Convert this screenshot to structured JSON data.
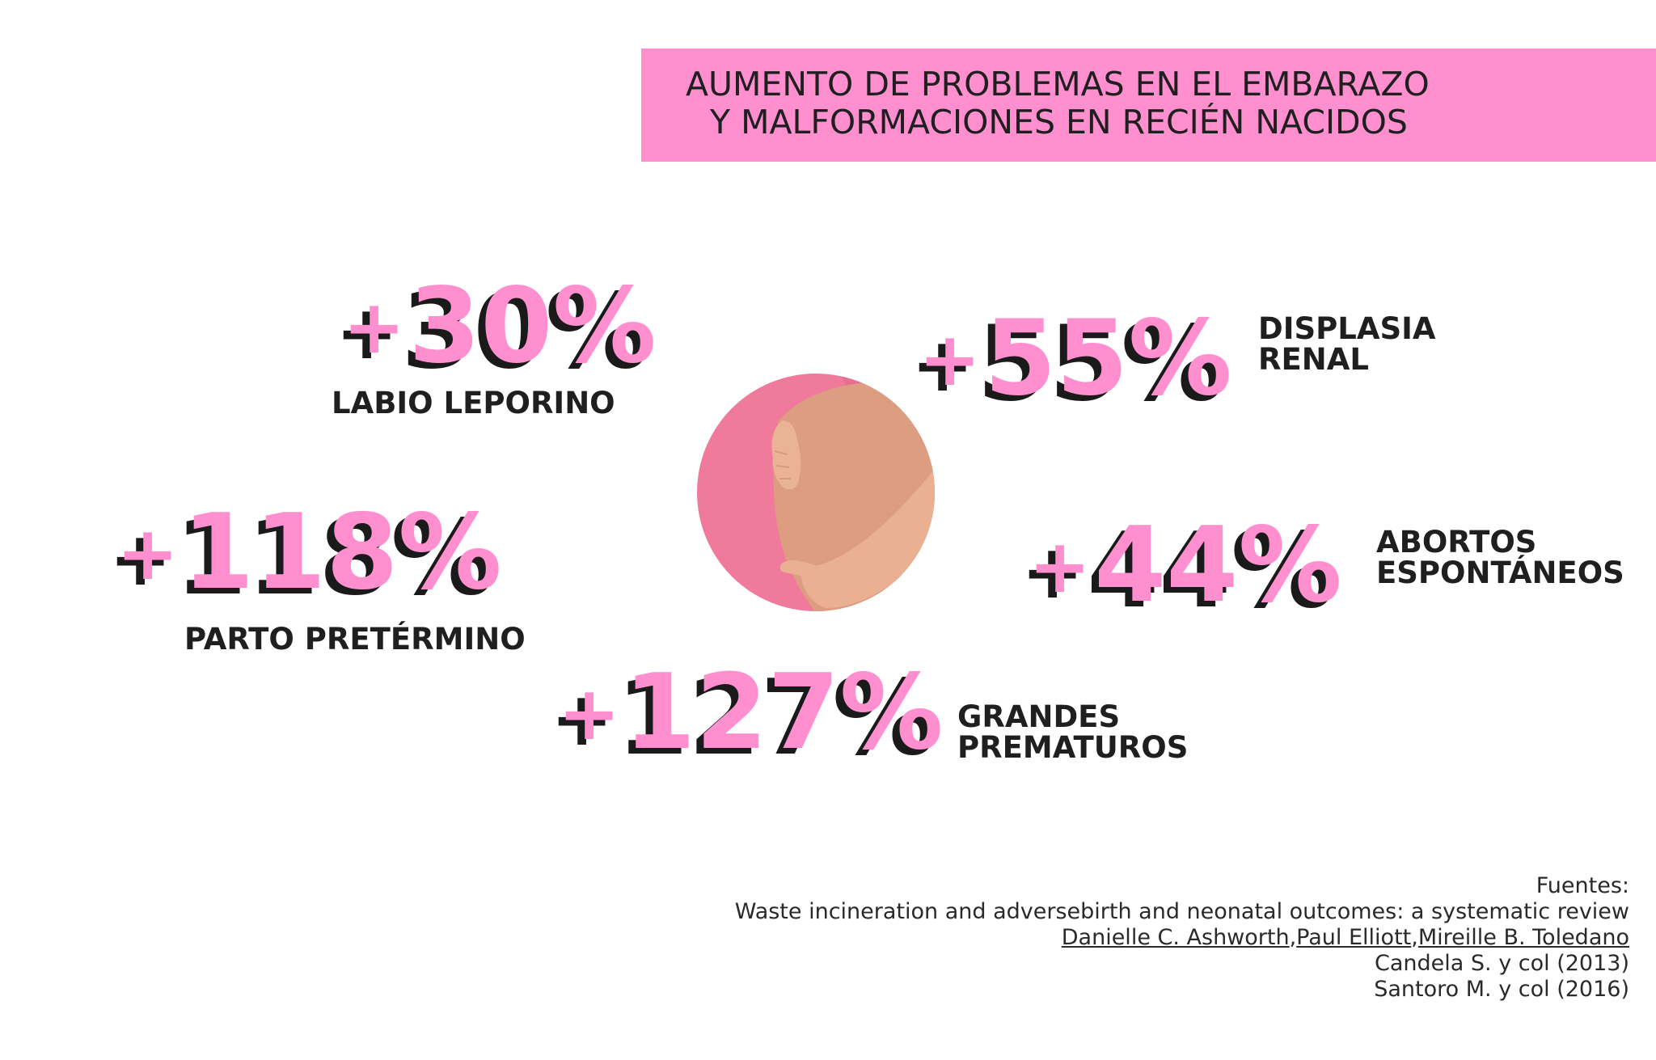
{
  "title": {
    "line1": "AUMENTO DE PROBLEMAS EN EL EMBARAZO",
    "line2": "Y MALFORMACIONES EN RECIÉN NACIDOS"
  },
  "stats": {
    "labio": {
      "value": "+30%",
      "plus": "+",
      "number": "30%",
      "label": "LABIO LEPORINO"
    },
    "displasia": {
      "value": "+55%",
      "plus": "+",
      "number": "55%",
      "label_line1": "DISPLASIA",
      "label_line2": "RENAL"
    },
    "parto": {
      "value": "+118%",
      "plus": "+",
      "number": "118%",
      "label": "PARTO PRETÉRMINO"
    },
    "abortos": {
      "value": "+44%",
      "plus": "+",
      "number": "44%",
      "label_line1": "ABORTOS",
      "label_line2": "ESPONTÁNEOS"
    },
    "grandes": {
      "value": "+127%",
      "plus": "+",
      "number": "127%",
      "label_line1": "GRANDES",
      "label_line2": "PREMATUROS"
    }
  },
  "sources": {
    "heading": "Fuentes:",
    "line1": "Waste incineration and adversebirth and neonatal outcomes: a systematic review",
    "author1": "Danielle C. Ashworth",
    "sep1": ",",
    "author2": "Paul Elliott",
    "sep2": ",",
    "author3": "Mireille B. Toledano",
    "line3": "Candela S. y col (2013)",
    "line4": "Santoro M. y col (2016)"
  },
  "colors": {
    "accent_pink": "#ff8fcf",
    "shadow": "#1a1a1a",
    "text": "#1f1f1f",
    "circle_pink": "#f07a9c",
    "skin": "#dc9d80",
    "skin_light": "#e9b192"
  },
  "illustration": {
    "icon": "pregnant-belly-icon"
  }
}
